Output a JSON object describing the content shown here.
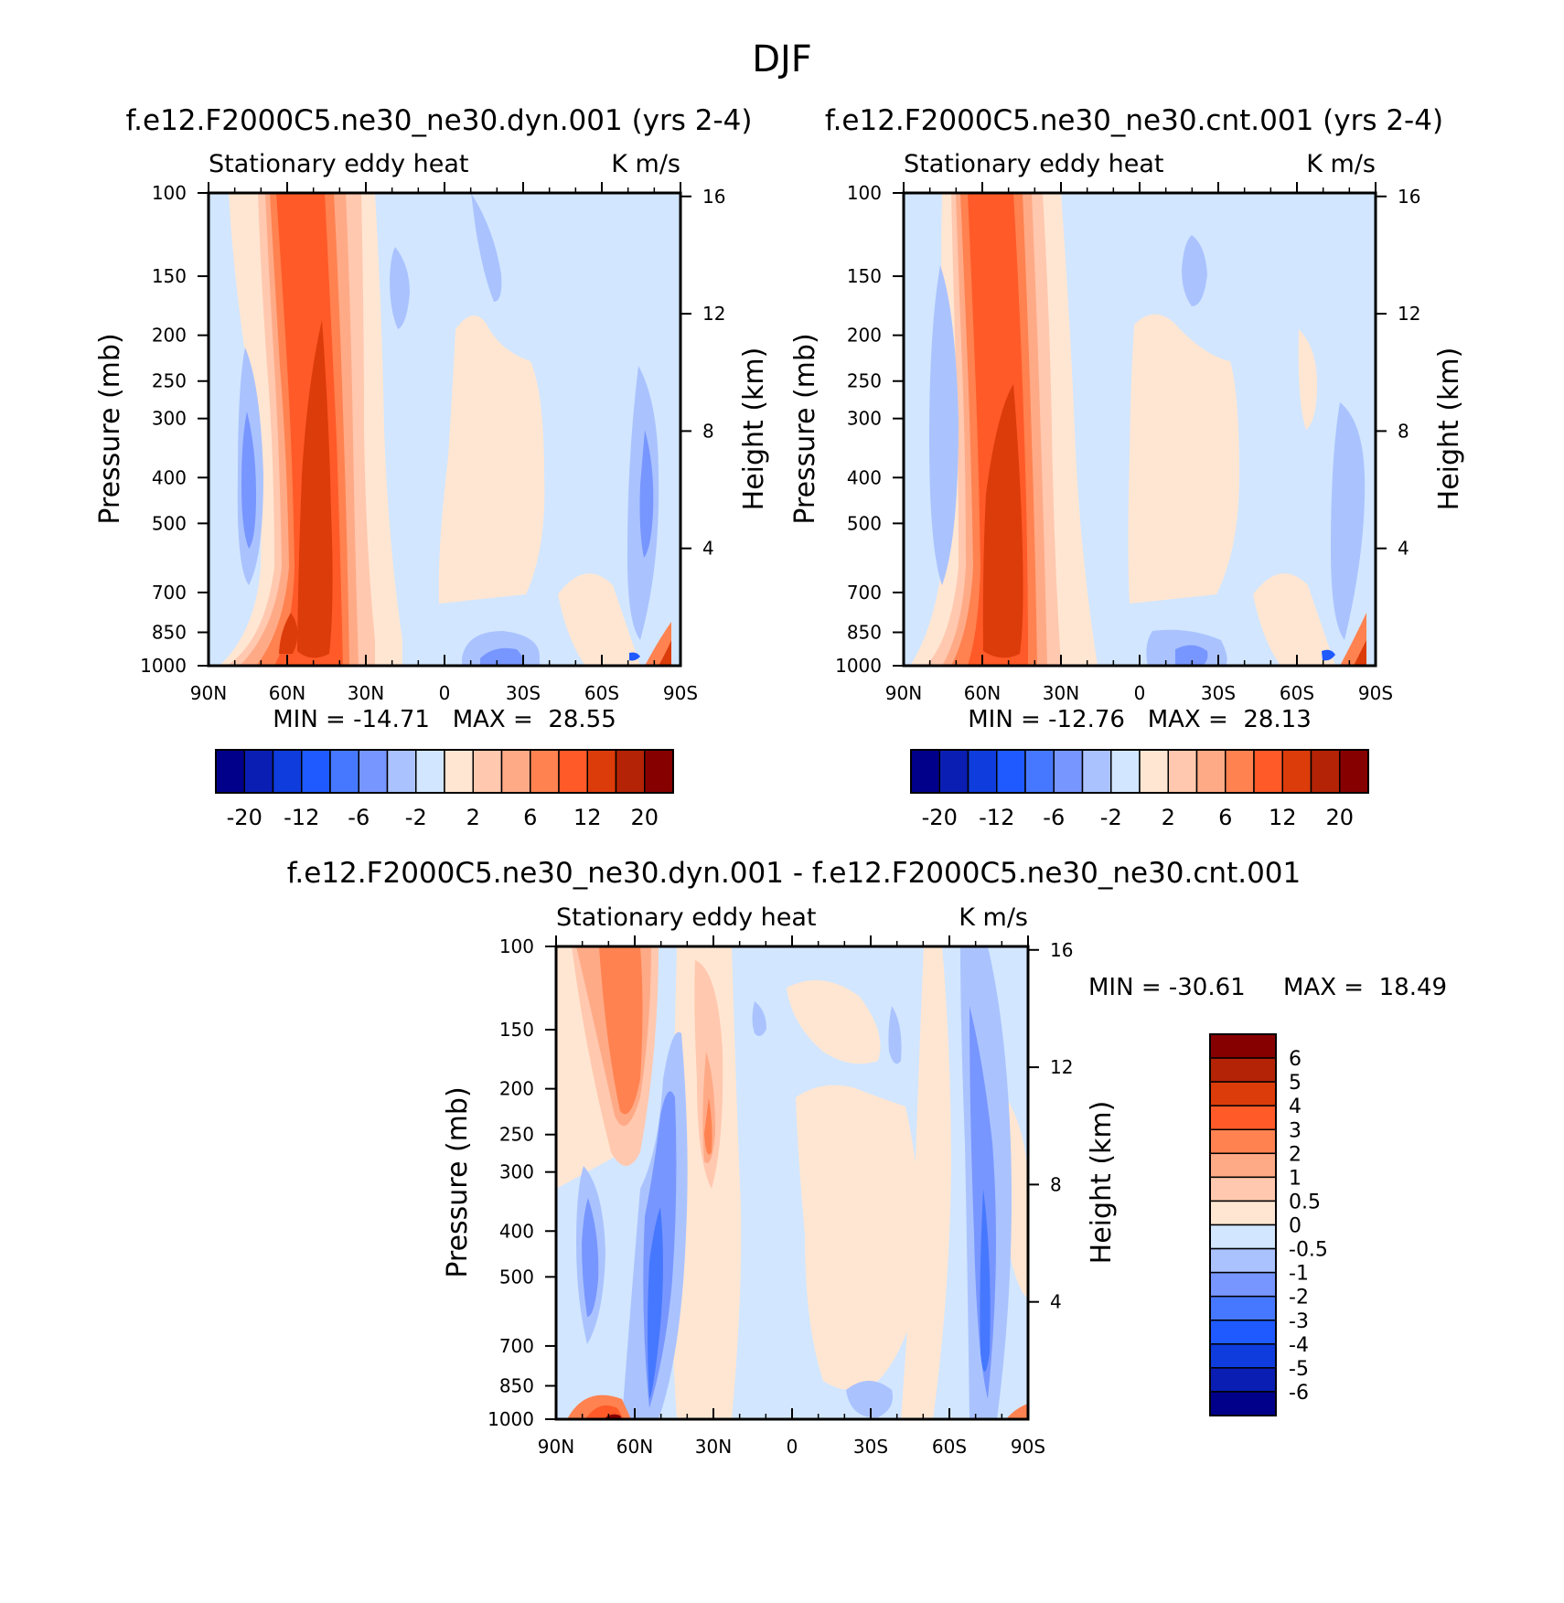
{
  "title": "DJF",
  "colors": {
    "main_scale": [
      "#00008b",
      "#0a1eb4",
      "#0f3cdc",
      "#1e5aff",
      "#4678ff",
      "#7896ff",
      "#aac3ff",
      "#d2e6ff",
      "#ffe6d2",
      "#ffc8af",
      "#ffaa87",
      "#ff8250",
      "#ff5a28",
      "#dc3c0a",
      "#b42305",
      "#870000"
    ],
    "diff_scale": [
      "#00008b",
      "#0a1eb4",
      "#0f3cdc",
      "#1e5aff",
      "#4678ff",
      "#7896ff",
      "#aac3ff",
      "#d2e6ff",
      "#ffe6d2",
      "#ffc8af",
      "#ffaa87",
      "#ff8250",
      "#ff5a28",
      "#dc3c0a",
      "#b42305",
      "#870000"
    ]
  },
  "chart_data": [
    {
      "type": "heatmap",
      "run_title": "f.e12.F2000C5.ne30_ne30.dyn.001 (yrs 2-4)",
      "left_title": "Stationary eddy heat",
      "right_title": "K m/s",
      "ylabel": "Pressure (mb)",
      "y2label": "Height (km)",
      "xticks": [
        "90N",
        "60N",
        "30N",
        "0",
        "30S",
        "60S",
        "90S"
      ],
      "yticks": [
        "100",
        "150",
        "200",
        "250",
        "300",
        "400",
        "500",
        "700",
        "850",
        "1000"
      ],
      "y2ticks": [
        "16",
        "12",
        "8",
        "4"
      ],
      "stats": "MIN = -14.71   MAX =  28.55",
      "min": -14.71,
      "max": 28.55,
      "colorbar_labels": [
        "-20",
        "-12",
        "-6",
        "-2",
        "2",
        "6",
        "12",
        "20"
      ],
      "contour_levels": [
        -20,
        -16,
        -12,
        -8,
        -6,
        -4,
        -2,
        0,
        2,
        4,
        6,
        8,
        12,
        16,
        20
      ]
    },
    {
      "type": "heatmap",
      "run_title": "f.e12.F2000C5.ne30_ne30.cnt.001 (yrs 2-4)",
      "left_title": "Stationary eddy heat",
      "right_title": "K m/s",
      "ylabel": "Pressure (mb)",
      "y2label": "Height (km)",
      "xticks": [
        "90N",
        "60N",
        "30N",
        "0",
        "30S",
        "60S",
        "90S"
      ],
      "yticks": [
        "100",
        "150",
        "200",
        "250",
        "300",
        "400",
        "500",
        "700",
        "850",
        "1000"
      ],
      "y2ticks": [
        "16",
        "12",
        "8",
        "4"
      ],
      "stats": "MIN = -12.76   MAX =  28.13",
      "min": -12.76,
      "max": 28.13,
      "colorbar_labels": [
        "-20",
        "-12",
        "-6",
        "-2",
        "2",
        "6",
        "12",
        "20"
      ],
      "contour_levels": [
        -20,
        -16,
        -12,
        -8,
        -6,
        -4,
        -2,
        0,
        2,
        4,
        6,
        8,
        12,
        16,
        20
      ]
    },
    {
      "type": "heatmap",
      "run_title": "f.e12.F2000C5.ne30_ne30.dyn.001 - f.e12.F2000C5.ne30_ne30.cnt.001",
      "left_title": "Stationary eddy heat",
      "right_title": "K m/s",
      "ylabel": "Pressure (mb)",
      "y2label": "Height (km)",
      "xticks": [
        "90N",
        "60N",
        "30N",
        "0",
        "30S",
        "60S",
        "90S"
      ],
      "yticks": [
        "100",
        "150",
        "200",
        "250",
        "300",
        "400",
        "500",
        "700",
        "850",
        "1000"
      ],
      "y2ticks": [
        "16",
        "12",
        "8",
        "4"
      ],
      "stats_min": "MIN = -30.61",
      "stats_max": "MAX =  18.49",
      "min": -30.61,
      "max": 18.49,
      "colorbar_labels": [
        "6",
        "5",
        "4",
        "3",
        "2",
        "1",
        "0.5",
        "0",
        "-0.5",
        "-1",
        "-2",
        "-3",
        "-4",
        "-5",
        "-6"
      ],
      "contour_levels": [
        -6,
        -5,
        -4,
        -3,
        -2,
        -1,
        -0.5,
        0,
        0.5,
        1,
        2,
        3,
        4,
        5,
        6
      ]
    }
  ]
}
